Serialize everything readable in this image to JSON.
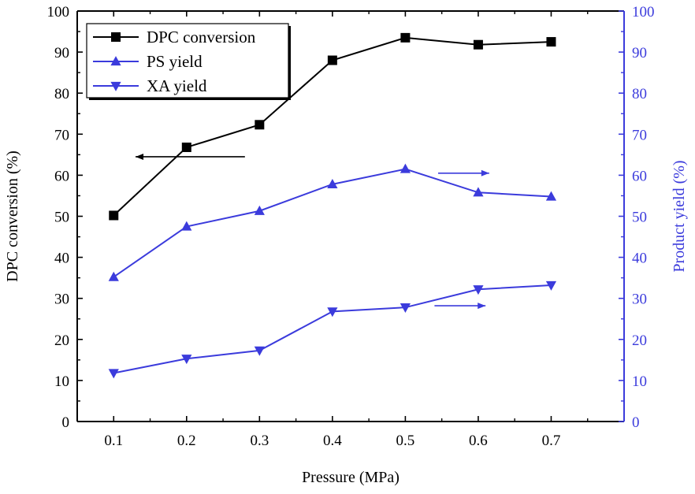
{
  "chart_data": {
    "type": "line",
    "x": [
      0.1,
      0.2,
      0.3,
      0.4,
      0.5,
      0.6,
      0.7
    ],
    "x_ticks": [
      "0.1",
      "0.2",
      "0.3",
      "0.4",
      "0.5",
      "0.6",
      "0.7"
    ],
    "xlim": [
      0.05,
      0.8
    ],
    "xlabel": "Pressure (MPa)",
    "y_left": {
      "label": "DPC conversion (%)",
      "lim": [
        0,
        100
      ],
      "ticks": [
        "0",
        "10",
        "20",
        "30",
        "40",
        "50",
        "60",
        "70",
        "80",
        "90",
        "100"
      ],
      "color": "#000000"
    },
    "y_right": {
      "label": "Product yield (%)",
      "lim": [
        0,
        100
      ],
      "ticks": [
        "0",
        "10",
        "20",
        "30",
        "40",
        "50",
        "60",
        "70",
        "80",
        "90",
        "100"
      ],
      "color": "#3b3bdc"
    },
    "series": [
      {
        "name": "DPC conversion",
        "axis": "left",
        "marker": "square",
        "color": "#000000",
        "values": [
          50.2,
          66.8,
          72.3,
          88.0,
          93.5,
          91.8,
          92.5
        ]
      },
      {
        "name": "PS yield",
        "axis": "right",
        "marker": "triangle-up",
        "color": "#3b3bdc",
        "values": [
          35.2,
          47.5,
          51.3,
          57.8,
          61.5,
          55.8,
          54.8
        ]
      },
      {
        "name": "XA yield",
        "axis": "right",
        "marker": "triangle-down",
        "color": "#3b3bdc",
        "values": [
          11.8,
          15.3,
          17.3,
          26.8,
          27.8,
          32.2,
          33.2
        ]
      }
    ],
    "annotations": [
      {
        "type": "arrow",
        "direction": "left",
        "color": "#000000",
        "x": [
          0.28,
          0.13
        ],
        "y": 64.5,
        "axis": "left"
      },
      {
        "type": "arrow",
        "direction": "right",
        "color": "#3b3bdc",
        "x": [
          0.545,
          0.615
        ],
        "y": 60.5,
        "axis": "right"
      },
      {
        "type": "arrow",
        "direction": "right",
        "color": "#3b3bdc",
        "x": [
          0.54,
          0.61
        ],
        "y": 28.2,
        "axis": "right"
      }
    ],
    "legend_position": "top-left",
    "grid": false
  }
}
